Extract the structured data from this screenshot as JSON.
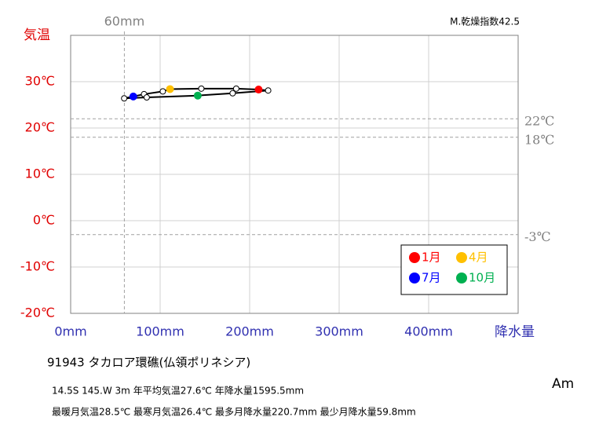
{
  "chart_data": {
    "type": "climograph",
    "top_note": "M.乾燥指数42.5",
    "y_label": "気温",
    "x_label": "降水量",
    "xlim": [
      0,
      500
    ],
    "ylim": [
      -20,
      40
    ],
    "xticks": [
      {
        "value": 0,
        "label": "0mm"
      },
      {
        "value": 100,
        "label": "100mm"
      },
      {
        "value": 200,
        "label": "200mm"
      },
      {
        "value": 300,
        "label": "300mm"
      },
      {
        "value": 400,
        "label": "400mm"
      }
    ],
    "yticks": [
      {
        "value": -20,
        "label": "-20℃"
      },
      {
        "value": -10,
        "label": "-10℃"
      },
      {
        "value": 0,
        "label": "0℃"
      },
      {
        "value": 10,
        "label": "10℃"
      },
      {
        "value": 20,
        "label": "20℃"
      },
      {
        "value": 30,
        "label": "30℃"
      }
    ],
    "grid": true,
    "ref_lines": [
      {
        "axis": "x",
        "value": 60,
        "label": "60mm"
      },
      {
        "axis": "y",
        "value": 22,
        "label": "22℃"
      },
      {
        "axis": "y",
        "value": 18,
        "label": "18℃"
      },
      {
        "axis": "y",
        "value": -3,
        "label": "-3℃"
      }
    ],
    "x": [
      210,
      185,
      146,
      111,
      103,
      82,
      70,
      59.8,
      85,
      142,
      181,
      220.7
    ],
    "values": [
      28.3,
      28.5,
      28.5,
      28.4,
      27.9,
      27.3,
      26.8,
      26.4,
      26.6,
      27.0,
      27.5,
      28.1
    ],
    "point_colors": [
      "#ff0000",
      "#ffffff",
      "#ffffff",
      "#ffc000",
      "#ffffff",
      "#ffffff",
      "#0000ff",
      "#ffffff",
      "#ffffff",
      "#00b050",
      "#ffffff",
      "#ffffff"
    ],
    "legend": [
      {
        "name": "1月",
        "color": "#ff0000"
      },
      {
        "name": "4月",
        "color": "#ffc000"
      },
      {
        "name": "7月",
        "color": "#0000ff"
      },
      {
        "name": "10月",
        "color": "#00b050"
      }
    ],
    "station": "91943  タカロア環礁(仏領ポリネシア)",
    "info_line1": "14.5S  145.W 3m  年平均気温27.6℃ 年降水量1595.5mm",
    "info_line2": "最暖月気温28.5℃ 最寒月気温26.4℃ 最多月降水量220.7mm 最少月降水量59.8mm",
    "climate_class": "Am"
  }
}
